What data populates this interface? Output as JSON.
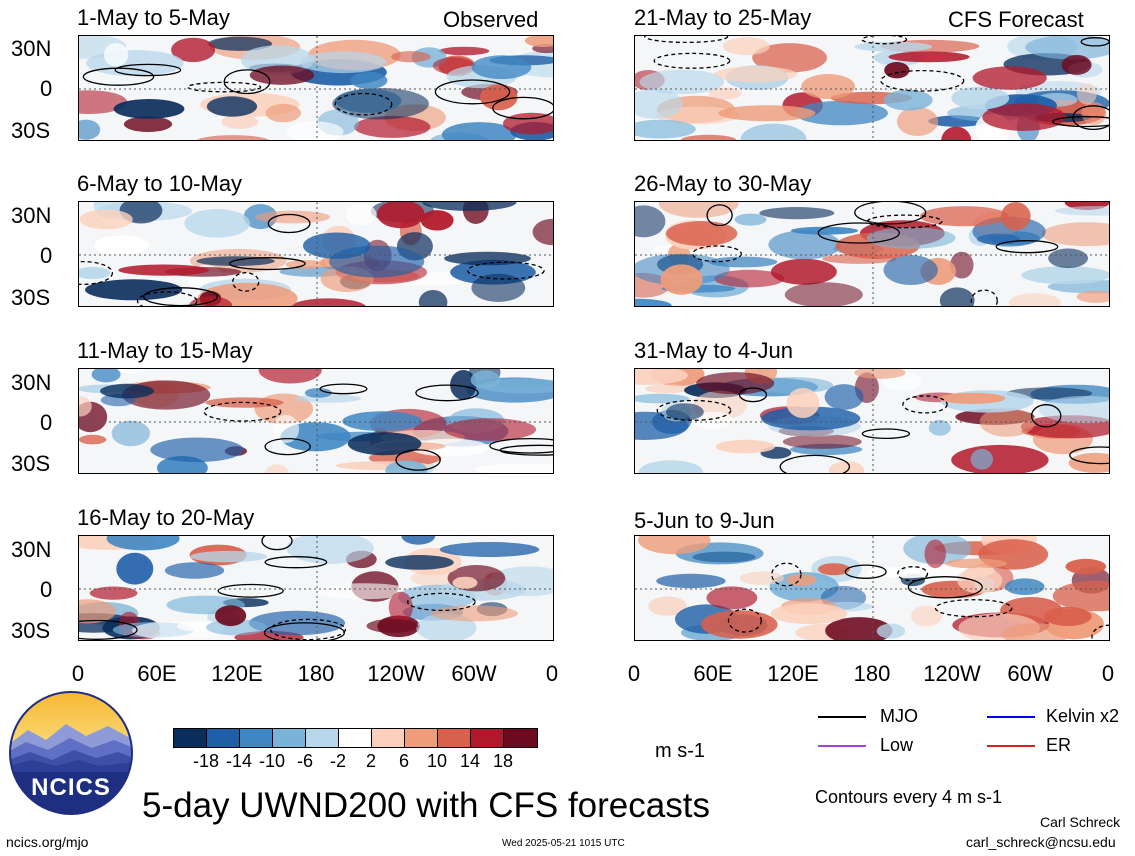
{
  "header": {
    "left_tag": "Observed",
    "right_tag": "CFS Forecast"
  },
  "panels_left": [
    {
      "title": "1-May to 5-May"
    },
    {
      "title": "6-May to 10-May"
    },
    {
      "title": "11-May to 15-May"
    },
    {
      "title": "16-May to 20-May"
    }
  ],
  "panels_right": [
    {
      "title": "21-May to 25-May"
    },
    {
      "title": "26-May to 30-May"
    },
    {
      "title": "31-May to 4-Jun"
    },
    {
      "title": "5-Jun to 9-Jun"
    }
  ],
  "y_ticks": [
    "30N",
    "0",
    "30S"
  ],
  "x_ticks": [
    "0",
    "60E",
    "120E",
    "180",
    "120W",
    "60W",
    "0"
  ],
  "colorbar": {
    "labels": [
      "-18",
      "-14",
      "-10",
      "-6",
      "-2",
      "2",
      "6",
      "10",
      "14",
      "18"
    ],
    "colors": [
      "#0a2e5c",
      "#1f5fa8",
      "#3f86c2",
      "#7ab3d8",
      "#b7d7ea",
      "#ffffff",
      "#fbd1bd",
      "#ee9c7a",
      "#d9604c",
      "#b2182b",
      "#6e0a1f"
    ],
    "units": "m s-1"
  },
  "legend": {
    "items": [
      {
        "label": "MJO",
        "color": "#000000"
      },
      {
        "label": "Kelvin x2",
        "color": "#0000ee"
      },
      {
        "label": "Low",
        "color": "#a040e0"
      },
      {
        "label": "ER",
        "color": "#e02020"
      }
    ],
    "note": "Contours every 4 m s-1"
  },
  "logo": {
    "text": "NCICS"
  },
  "main_title": "5-day UWND200 with CFS forecasts",
  "footer": {
    "url": "ncics.org/mjo",
    "timestamp": "Wed 2025-05-21 1015 UTC",
    "author": "Carl Schreck",
    "email": "carl_schreck@ncsu.edu"
  }
}
